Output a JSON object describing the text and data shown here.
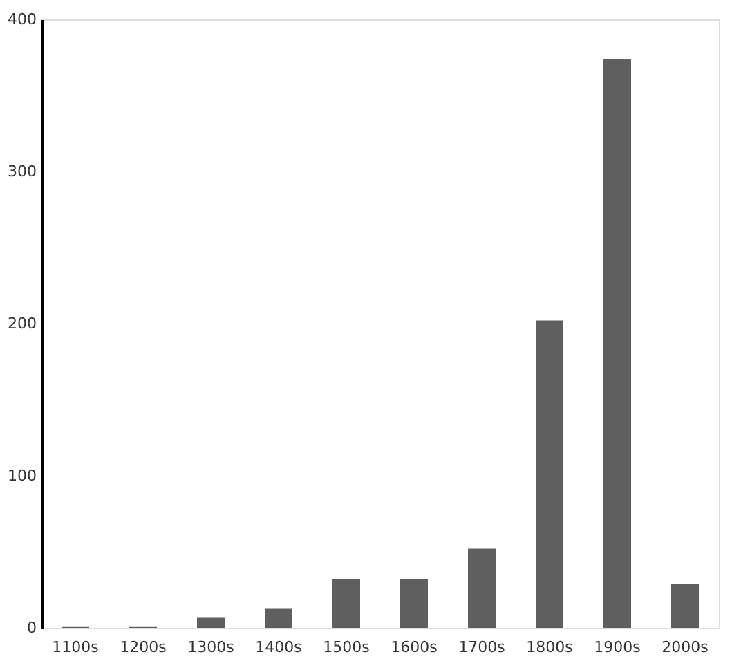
{
  "chart_data": {
    "type": "bar",
    "categories": [
      "1100s",
      "1200s",
      "1300s",
      "1400s",
      "1500s",
      "1600s",
      "1700s",
      "1800s",
      "1900s",
      "2000s"
    ],
    "values": [
      1,
      1,
      7,
      13,
      32,
      32,
      52,
      202,
      374,
      29
    ],
    "color": "#5f5f5f",
    "ylim": [
      0,
      400
    ],
    "yticks": [
      0,
      100,
      200,
      300,
      400
    ],
    "grid": false
  }
}
